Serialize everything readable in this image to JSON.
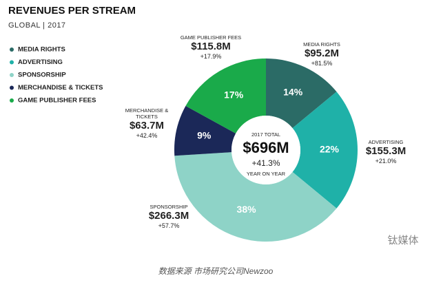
{
  "chart_data": {
    "type": "donut",
    "title": "REVENUES PER STREAM",
    "subtitle": "GLOBAL | 2017",
    "categories": [
      "MEDIA RIGHTS",
      "ADVERTISING",
      "SPONSORSHIP",
      "MERCHANDISE & TICKETS",
      "GAME PUBLISHER FEES"
    ],
    "values": [
      14,
      22,
      38,
      9,
      17
    ],
    "value_labels": [
      "14%",
      "22%",
      "38%",
      "9%",
      "17%"
    ],
    "colors": [
      "#2b6b66",
      "#1fb1a8",
      "#8ed3c7",
      "#1b2858",
      "#1aaa4a"
    ],
    "amounts": [
      "$95.2M",
      "$155.3M",
      "$266.3M",
      "$63.7M",
      "$115.8M"
    ],
    "growth": [
      "+81.5%",
      "+21.0%",
      "+57.7%",
      "+42.4%",
      "+17.9%"
    ],
    "center": {
      "label": "2017 TOTAL",
      "total": "$696M",
      "change": "+41.3%",
      "note": "YEAR ON YEAR"
    },
    "source": "数据来源 市场研究公司Newzoo",
    "watermark": "钛媒体"
  }
}
